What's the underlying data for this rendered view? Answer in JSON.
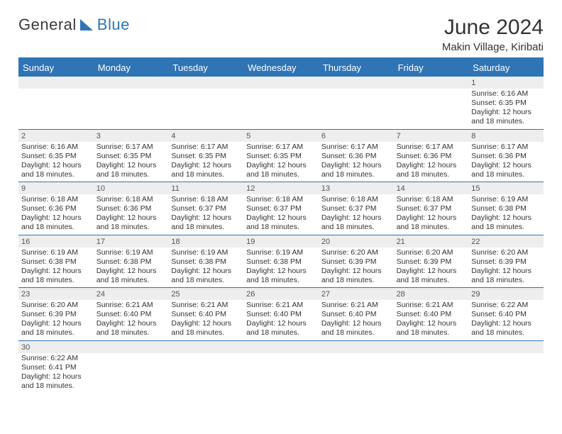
{
  "logo": {
    "text1": "General",
    "text2": "Blue"
  },
  "title": "June 2024",
  "subtitle": "Makin Village, Kiribati",
  "colors": {
    "accent": "#2f74b5",
    "header_bg": "#2f74b5",
    "header_text": "#ffffff",
    "daynum_bg": "#eeeeee",
    "text": "#333333",
    "rule": "#2f74b5",
    "background": "#ffffff"
  },
  "day_headers": [
    "Sunday",
    "Monday",
    "Tuesday",
    "Wednesday",
    "Thursday",
    "Friday",
    "Saturday"
  ],
  "weeks": [
    {
      "nums": [
        "",
        "",
        "",
        "",
        "",
        "",
        "1"
      ],
      "cells": [
        null,
        null,
        null,
        null,
        null,
        null,
        {
          "sunrise": "Sunrise: 6:16 AM",
          "sunset": "Sunset: 6:35 PM",
          "day1": "Daylight: 12 hours",
          "day2": "and 18 minutes."
        }
      ]
    },
    {
      "nums": [
        "2",
        "3",
        "4",
        "5",
        "6",
        "7",
        "8"
      ],
      "cells": [
        {
          "sunrise": "Sunrise: 6:16 AM",
          "sunset": "Sunset: 6:35 PM",
          "day1": "Daylight: 12 hours",
          "day2": "and 18 minutes."
        },
        {
          "sunrise": "Sunrise: 6:17 AM",
          "sunset": "Sunset: 6:35 PM",
          "day1": "Daylight: 12 hours",
          "day2": "and 18 minutes."
        },
        {
          "sunrise": "Sunrise: 6:17 AM",
          "sunset": "Sunset: 6:35 PM",
          "day1": "Daylight: 12 hours",
          "day2": "and 18 minutes."
        },
        {
          "sunrise": "Sunrise: 6:17 AM",
          "sunset": "Sunset: 6:35 PM",
          "day1": "Daylight: 12 hours",
          "day2": "and 18 minutes."
        },
        {
          "sunrise": "Sunrise: 6:17 AM",
          "sunset": "Sunset: 6:36 PM",
          "day1": "Daylight: 12 hours",
          "day2": "and 18 minutes."
        },
        {
          "sunrise": "Sunrise: 6:17 AM",
          "sunset": "Sunset: 6:36 PM",
          "day1": "Daylight: 12 hours",
          "day2": "and 18 minutes."
        },
        {
          "sunrise": "Sunrise: 6:17 AM",
          "sunset": "Sunset: 6:36 PM",
          "day1": "Daylight: 12 hours",
          "day2": "and 18 minutes."
        }
      ]
    },
    {
      "nums": [
        "9",
        "10",
        "11",
        "12",
        "13",
        "14",
        "15"
      ],
      "cells": [
        {
          "sunrise": "Sunrise: 6:18 AM",
          "sunset": "Sunset: 6:36 PM",
          "day1": "Daylight: 12 hours",
          "day2": "and 18 minutes."
        },
        {
          "sunrise": "Sunrise: 6:18 AM",
          "sunset": "Sunset: 6:36 PM",
          "day1": "Daylight: 12 hours",
          "day2": "and 18 minutes."
        },
        {
          "sunrise": "Sunrise: 6:18 AM",
          "sunset": "Sunset: 6:37 PM",
          "day1": "Daylight: 12 hours",
          "day2": "and 18 minutes."
        },
        {
          "sunrise": "Sunrise: 6:18 AM",
          "sunset": "Sunset: 6:37 PM",
          "day1": "Daylight: 12 hours",
          "day2": "and 18 minutes."
        },
        {
          "sunrise": "Sunrise: 6:18 AM",
          "sunset": "Sunset: 6:37 PM",
          "day1": "Daylight: 12 hours",
          "day2": "and 18 minutes."
        },
        {
          "sunrise": "Sunrise: 6:18 AM",
          "sunset": "Sunset: 6:37 PM",
          "day1": "Daylight: 12 hours",
          "day2": "and 18 minutes."
        },
        {
          "sunrise": "Sunrise: 6:19 AM",
          "sunset": "Sunset: 6:38 PM",
          "day1": "Daylight: 12 hours",
          "day2": "and 18 minutes."
        }
      ]
    },
    {
      "nums": [
        "16",
        "17",
        "18",
        "19",
        "20",
        "21",
        "22"
      ],
      "cells": [
        {
          "sunrise": "Sunrise: 6:19 AM",
          "sunset": "Sunset: 6:38 PM",
          "day1": "Daylight: 12 hours",
          "day2": "and 18 minutes."
        },
        {
          "sunrise": "Sunrise: 6:19 AM",
          "sunset": "Sunset: 6:38 PM",
          "day1": "Daylight: 12 hours",
          "day2": "and 18 minutes."
        },
        {
          "sunrise": "Sunrise: 6:19 AM",
          "sunset": "Sunset: 6:38 PM",
          "day1": "Daylight: 12 hours",
          "day2": "and 18 minutes."
        },
        {
          "sunrise": "Sunrise: 6:19 AM",
          "sunset": "Sunset: 6:38 PM",
          "day1": "Daylight: 12 hours",
          "day2": "and 18 minutes."
        },
        {
          "sunrise": "Sunrise: 6:20 AM",
          "sunset": "Sunset: 6:39 PM",
          "day1": "Daylight: 12 hours",
          "day2": "and 18 minutes."
        },
        {
          "sunrise": "Sunrise: 6:20 AM",
          "sunset": "Sunset: 6:39 PM",
          "day1": "Daylight: 12 hours",
          "day2": "and 18 minutes."
        },
        {
          "sunrise": "Sunrise: 6:20 AM",
          "sunset": "Sunset: 6:39 PM",
          "day1": "Daylight: 12 hours",
          "day2": "and 18 minutes."
        }
      ]
    },
    {
      "nums": [
        "23",
        "24",
        "25",
        "26",
        "27",
        "28",
        "29"
      ],
      "cells": [
        {
          "sunrise": "Sunrise: 6:20 AM",
          "sunset": "Sunset: 6:39 PM",
          "day1": "Daylight: 12 hours",
          "day2": "and 18 minutes."
        },
        {
          "sunrise": "Sunrise: 6:21 AM",
          "sunset": "Sunset: 6:40 PM",
          "day1": "Daylight: 12 hours",
          "day2": "and 18 minutes."
        },
        {
          "sunrise": "Sunrise: 6:21 AM",
          "sunset": "Sunset: 6:40 PM",
          "day1": "Daylight: 12 hours",
          "day2": "and 18 minutes."
        },
        {
          "sunrise": "Sunrise: 6:21 AM",
          "sunset": "Sunset: 6:40 PM",
          "day1": "Daylight: 12 hours",
          "day2": "and 18 minutes."
        },
        {
          "sunrise": "Sunrise: 6:21 AM",
          "sunset": "Sunset: 6:40 PM",
          "day1": "Daylight: 12 hours",
          "day2": "and 18 minutes."
        },
        {
          "sunrise": "Sunrise: 6:21 AM",
          "sunset": "Sunset: 6:40 PM",
          "day1": "Daylight: 12 hours",
          "day2": "and 18 minutes."
        },
        {
          "sunrise": "Sunrise: 6:22 AM",
          "sunset": "Sunset: 6:40 PM",
          "day1": "Daylight: 12 hours",
          "day2": "and 18 minutes."
        }
      ]
    },
    {
      "nums": [
        "30",
        "",
        "",
        "",
        "",
        "",
        ""
      ],
      "cells": [
        {
          "sunrise": "Sunrise: 6:22 AM",
          "sunset": "Sunset: 6:41 PM",
          "day1": "Daylight: 12 hours",
          "day2": "and 18 minutes."
        },
        null,
        null,
        null,
        null,
        null,
        null
      ]
    }
  ]
}
